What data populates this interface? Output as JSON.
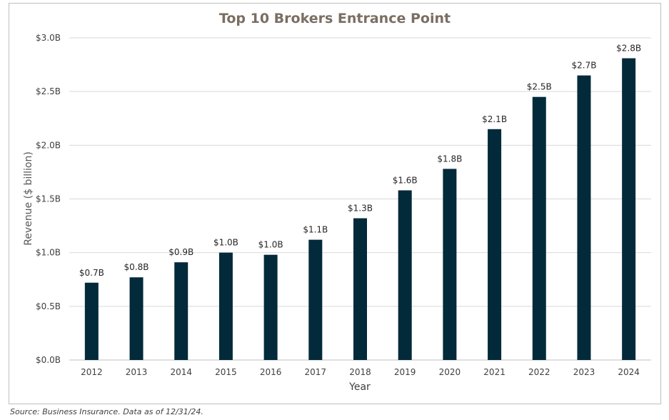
{
  "chart_data": {
    "type": "bar",
    "title": "Top 10 Brokers Entrance Point",
    "xlabel": "Year",
    "ylabel": "Revenue ($ billion)",
    "categories": [
      "2012",
      "2013",
      "2014",
      "2015",
      "2016",
      "2017",
      "2018",
      "2019",
      "2020",
      "2021",
      "2022",
      "2023",
      "2024"
    ],
    "values": [
      0.72,
      0.77,
      0.91,
      1.0,
      0.98,
      1.12,
      1.32,
      1.58,
      1.78,
      2.15,
      2.45,
      2.65,
      2.81
    ],
    "data_labels": [
      "$0.7B",
      "$0.8B",
      "$0.9B",
      "$1.0B",
      "$1.0B",
      "$1.1B",
      "$1.3B",
      "$1.6B",
      "$1.8B",
      "$2.1B",
      "$2.5B",
      "$2.7B",
      "$2.8B"
    ],
    "ylim": [
      0,
      3.0
    ],
    "yticks": [
      0,
      0.5,
      1.0,
      1.5,
      2.0,
      2.5,
      3.0
    ],
    "ytick_labels": [
      "$0.0B",
      "$0.5B",
      "$1.0B",
      "$1.5B",
      "$2.0B",
      "$2.5B",
      "$3.0B"
    ],
    "grid": true,
    "legend": "none",
    "bar_color": "#022a3a",
    "title_color": "#7a6e62"
  },
  "footer": {
    "source": "Source: Business Insurance. Data as of 12/31/24."
  }
}
